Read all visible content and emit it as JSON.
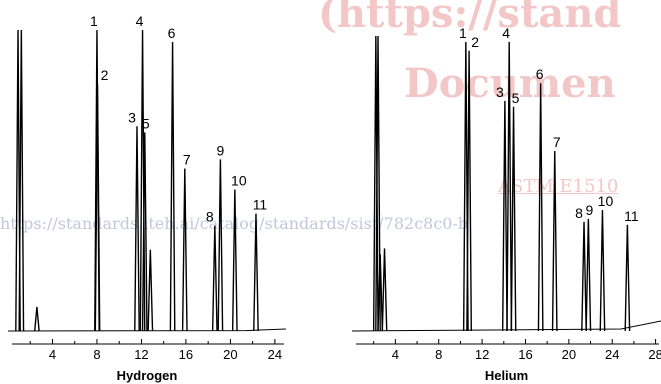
{
  "watermark": {
    "line1": "(https://stand",
    "line2": "Documen",
    "line3": "ASTM E1510",
    "line4": "https://standards.iteh.ai/catalog/standards/sist/782c8c0-b"
  },
  "colors": {
    "trace": "#000000",
    "axis": "#000000",
    "watermark": "#f3c7c7"
  },
  "chart_data": [
    {
      "type": "line",
      "title": "",
      "xlabel": "Hydrogen",
      "ylabel": "",
      "xlim": [
        0,
        25
      ],
      "ylim": [
        0,
        100
      ],
      "x_ticks": [
        4,
        8,
        12,
        16,
        20,
        24
      ],
      "solvent_peaks": [
        {
          "x": 0.9,
          "y": 100
        },
        {
          "x": 1.2,
          "y": 100
        },
        {
          "x": 2.6,
          "y": 8
        }
      ],
      "extra_peaks": [
        {
          "x": 12.8,
          "y": 27
        }
      ],
      "peaks": [
        {
          "label": "1",
          "x": 8.0,
          "y": 100
        },
        {
          "label": "2",
          "x": 8.05,
          "y": 82
        },
        {
          "label": "3",
          "x": 11.6,
          "y": 68
        },
        {
          "label": "4",
          "x": 12.1,
          "y": 100
        },
        {
          "label": "5",
          "x": 12.3,
          "y": 66
        },
        {
          "label": "6",
          "x": 14.8,
          "y": 96
        },
        {
          "label": "7",
          "x": 15.9,
          "y": 54
        },
        {
          "label": "8",
          "x": 18.6,
          "y": 35
        },
        {
          "label": "9",
          "x": 19.1,
          "y": 57
        },
        {
          "label": "10",
          "x": 20.4,
          "y": 47
        },
        {
          "label": "11",
          "x": 22.3,
          "y": 39
        }
      ]
    },
    {
      "type": "line",
      "title": "",
      "xlabel": "Helium",
      "ylabel": "",
      "xlim": [
        0,
        28.5
      ],
      "ylim": [
        0,
        100
      ],
      "x_ticks": [
        4,
        8,
        12,
        16,
        20,
        24,
        28
      ],
      "solvent_peaks": [
        {
          "x": 2.2,
          "y": 100
        },
        {
          "x": 2.4,
          "y": 100
        },
        {
          "x": 2.6,
          "y": 26
        },
        {
          "x": 3.0,
          "y": 28
        }
      ],
      "extra_peaks": [],
      "peaks": [
        {
          "label": "1",
          "x": 10.5,
          "y": 98
        },
        {
          "label": "2",
          "x": 10.8,
          "y": 95
        },
        {
          "label": "3",
          "x": 14.1,
          "y": 78
        },
        {
          "label": "4",
          "x": 14.5,
          "y": 98
        },
        {
          "label": "5",
          "x": 14.9,
          "y": 76
        },
        {
          "label": "6",
          "x": 17.4,
          "y": 84
        },
        {
          "label": "7",
          "x": 18.7,
          "y": 61
        },
        {
          "label": "8",
          "x": 21.4,
          "y": 37
        },
        {
          "label": "9",
          "x": 21.8,
          "y": 38
        },
        {
          "label": "10",
          "x": 23.1,
          "y": 41
        },
        {
          "label": "11",
          "x": 25.4,
          "y": 36
        }
      ]
    }
  ]
}
